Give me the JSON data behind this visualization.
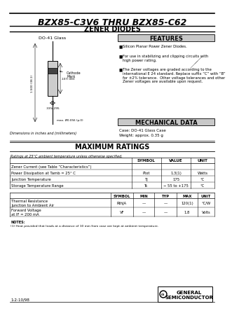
{
  "title": "BZX85-C3V6 THRU BZX85-C62",
  "subtitle": "ZENER DIODES",
  "bg_color": "#ffffff",
  "features_title": "FEATURES",
  "features": [
    "Silicon Planar Power Zener Diodes.",
    "For use in stabilizing and clipping circuits with\nhigh power rating.",
    "The Zener voltages are graded according to the\ninternational E 24 standard. Replace suffix “C” with “B”\nfor ±2% tolerance.  Other voltage tolerances and other\nZener voltages are available upon request."
  ],
  "mechanical_title": "MECHANICAL DATA",
  "mechanical_lines": [
    "Case: DO-41 Glass Case",
    "Weight: approx. 0.35 g"
  ],
  "package_label": "DO-41 Glass",
  "dim_note": "Dimensions in inches and (millimeters)",
  "max_ratings_title": "MAXIMUM RATINGS",
  "max_ratings_note": "Ratings at 25°C ambient temperature unless otherwise specified.",
  "table1_headers": [
    "",
    "SYMBOL",
    "VALUE",
    "UNIT"
  ],
  "table1_rows": [
    [
      "Zener Current (see Table “Characteristics”)",
      "",
      "",
      ""
    ],
    [
      "Power Dissipation at Tamb = 25° C",
      "Ptot",
      "1.3(1)",
      "Watts"
    ],
    [
      "Junction Temperature",
      "Tj",
      "175",
      "°C"
    ],
    [
      "Storage Temperature Range",
      "Ts",
      "− 55 to +175",
      "°C"
    ]
  ],
  "table2_headers": [
    "",
    "SYMBOL",
    "MIN",
    "TYP",
    "MAX",
    "UNIT"
  ],
  "table2_rows": [
    [
      "Thermal Resistance\nJunction to Ambient Air",
      "RthJA",
      "—",
      "—",
      "120(1)",
      "°C/W"
    ],
    [
      "Forward Voltage\nat IF = 200 mA",
      "VF",
      "—",
      "—",
      "1.8",
      "Volts"
    ]
  ],
  "notes_title": "NOTES:",
  "notes": "(1) Heat provided that leads at a distance of 10 mm from case are kept at ambient temperature.",
  "part_number_bottom": "1-2-10/98",
  "company_line1": "GENERAL",
  "company_line2": "SEMICONDUCTOR"
}
